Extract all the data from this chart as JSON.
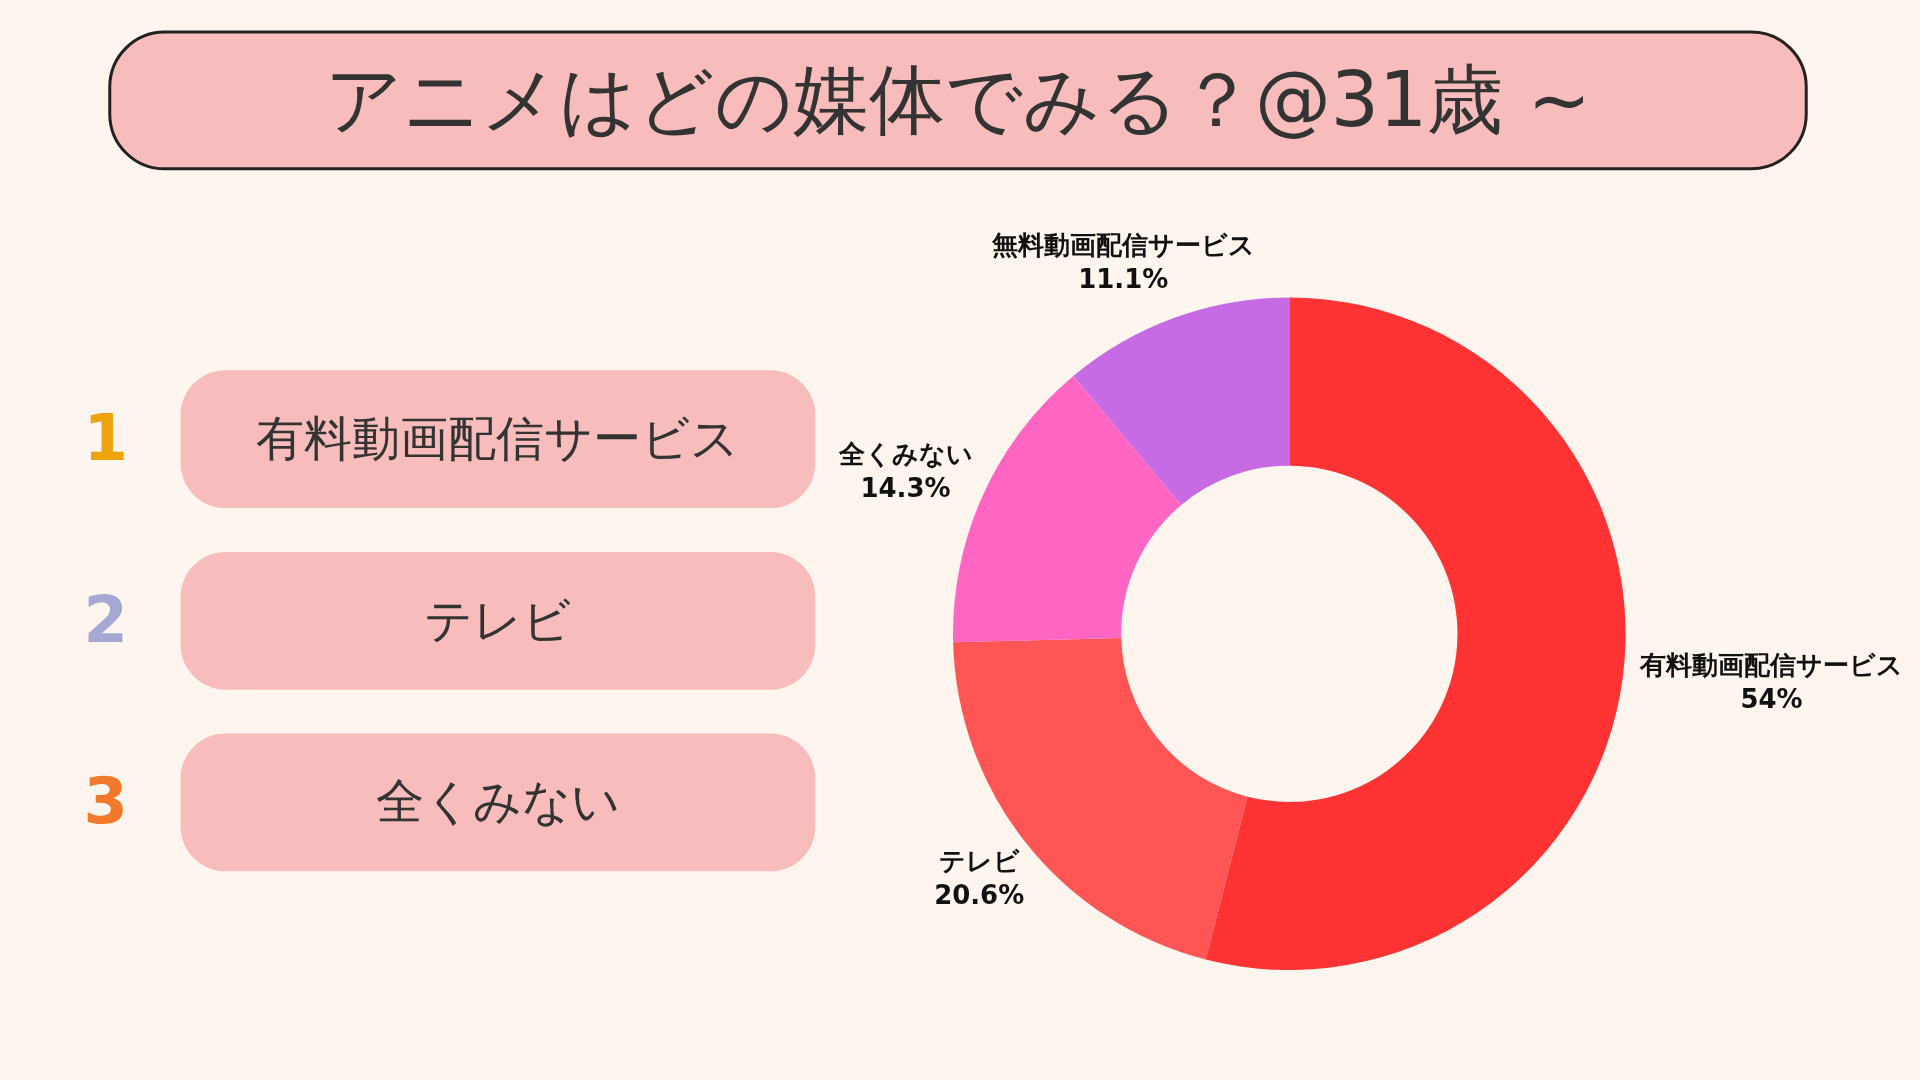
{
  "chart_data": [
    {
      "type": "other",
      "annotations": [
        "1",
        "有料動画配信サービス",
        "2",
        "テレビ",
        "3",
        "全くみない"
      ]
    },
    {
      "type": "donut",
      "title": "アニメはどの媒体でみる？@31歳 ~",
      "categories": [
        "有料動画配信サービス",
        "テレビ",
        "全くみない",
        "無料動画配信サービス"
      ],
      "values": [
        54,
        20.6,
        14.3,
        11.1
      ],
      "value_labels": [
        "54%",
        "20.6%",
        "14.3%",
        "11.1%"
      ],
      "colors": [
        "#ff3333",
        "#ff5555",
        "#ff66c4",
        "#c66be3"
      ]
    }
  ]
}
